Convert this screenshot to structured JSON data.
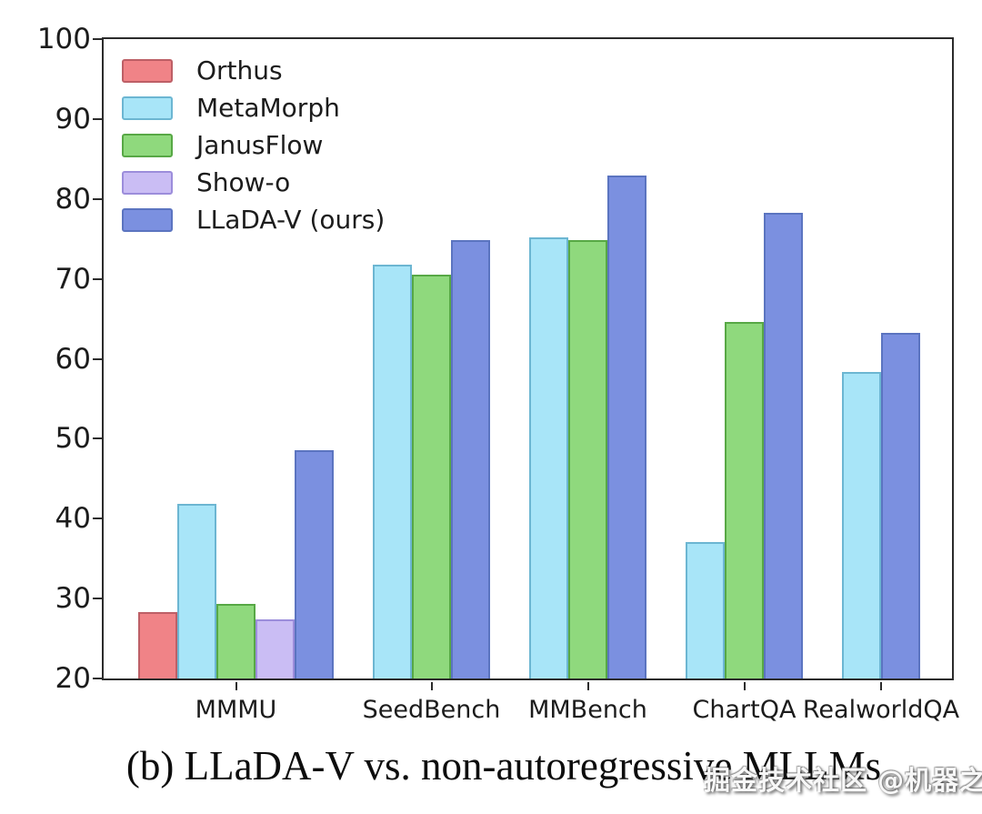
{
  "caption": "(b) LLaDA-V vs. non-autoregressive MLLMs",
  "watermark": "掘金技术社区 @机器之心",
  "chart_data": {
    "type": "bar",
    "title": "",
    "xlabel": "",
    "ylabel": "",
    "ylim": [
      20,
      100
    ],
    "yticks": [
      20,
      30,
      40,
      50,
      60,
      70,
      80,
      90,
      100
    ],
    "grid": false,
    "legend_position": "upper left",
    "categories": [
      "MMMU",
      "SeedBench",
      "MMBench",
      "ChartQA",
      "RealworldQA"
    ],
    "series": [
      {
        "name": "Orthus",
        "fill": "#f08387",
        "edge": "#bd5f66"
      },
      {
        "name": "MetaMorph",
        "fill": "#a8e5f8",
        "edge": "#6cb6d2"
      },
      {
        "name": "JanusFlow",
        "fill": "#8fd97d",
        "edge": "#57a845"
      },
      {
        "name": "Show-o",
        "fill": "#cabdf4",
        "edge": "#9c8ddb"
      },
      {
        "name": "LLaDA-V (ours)",
        "fill": "#7b90e0",
        "edge": "#5b74c0"
      }
    ],
    "groups": [
      {
        "category": "MMMU",
        "bars": [
          {
            "series": "Orthus",
            "value": 28.3
          },
          {
            "series": "MetaMorph",
            "value": 41.8
          },
          {
            "series": "JanusFlow",
            "value": 29.3
          },
          {
            "series": "Show-o",
            "value": 27.4
          },
          {
            "series": "LLaDA-V (ours)",
            "value": 48.6
          }
        ]
      },
      {
        "category": "SeedBench",
        "bars": [
          {
            "series": "MetaMorph",
            "value": 71.8
          },
          {
            "series": "JanusFlow",
            "value": 70.5
          },
          {
            "series": "LLaDA-V (ours)",
            "value": 74.9
          }
        ]
      },
      {
        "category": "MMBench",
        "bars": [
          {
            "series": "MetaMorph",
            "value": 75.2
          },
          {
            "series": "JanusFlow",
            "value": 74.9
          },
          {
            "series": "LLaDA-V (ours)",
            "value": 82.9
          }
        ]
      },
      {
        "category": "ChartQA",
        "bars": [
          {
            "series": "MetaMorph",
            "value": 37.1
          },
          {
            "series": "JanusFlow",
            "value": 64.6
          },
          {
            "series": "LLaDA-V (ours)",
            "value": 78.3
          }
        ]
      },
      {
        "category": "RealworldQA",
        "bars": [
          {
            "series": "MetaMorph",
            "value": 58.3
          },
          {
            "series": "LLaDA-V (ours)",
            "value": 63.2
          }
        ]
      }
    ]
  }
}
